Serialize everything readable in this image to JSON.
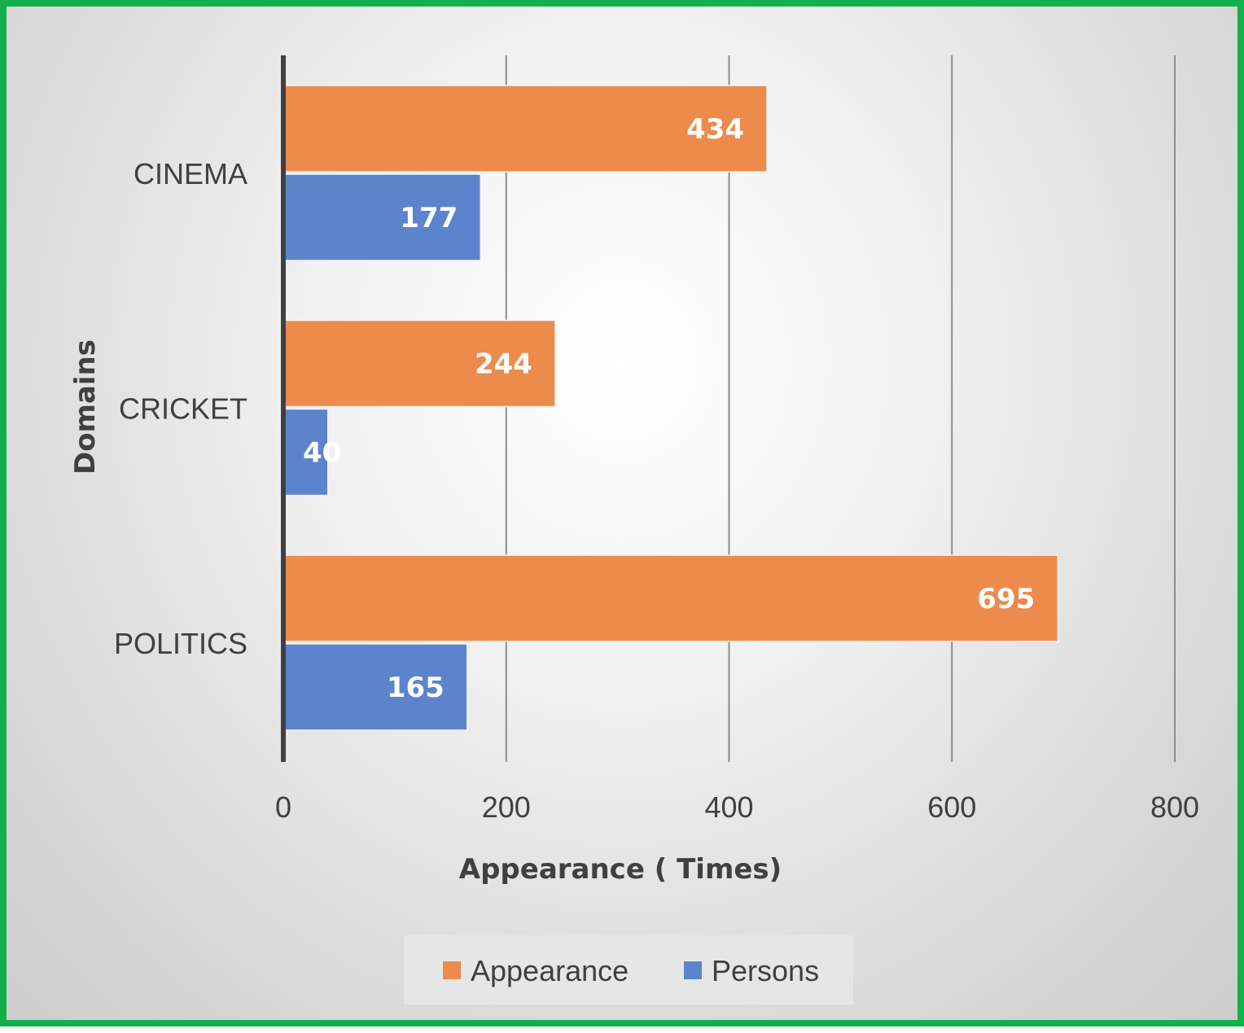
{
  "chart_data": {
    "type": "bar",
    "orientation": "horizontal",
    "categories": [
      "CINEMA",
      "CRICKET",
      "POLITICS"
    ],
    "series": [
      {
        "name": "Appearance",
        "color": "#ed8b4c",
        "values": [
          434,
          244,
          695
        ]
      },
      {
        "name": "Persons",
        "color": "#5b84cc",
        "values": [
          177,
          40,
          165
        ]
      }
    ],
    "xlabel": "Appearance ( Times)",
    "ylabel": "Domains",
    "xlim": [
      0,
      800
    ],
    "xticks": [
      0,
      200,
      400,
      600,
      800
    ],
    "grid": "vertical",
    "legend_position": "bottom",
    "data_labels": true
  }
}
